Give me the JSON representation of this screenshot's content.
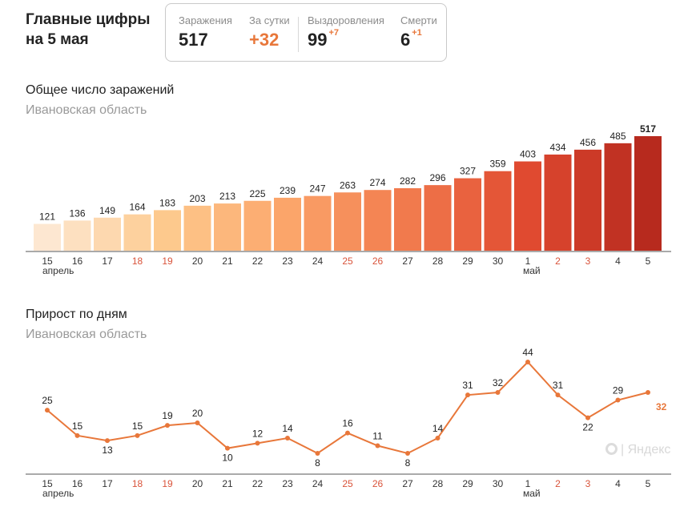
{
  "header": {
    "title": "Главные цифры на 5 мая"
  },
  "stats": [
    {
      "label": "Заражения",
      "value": "517",
      "delta": "",
      "accent": false
    },
    {
      "label": "За сутки",
      "value": "+32",
      "delta": "",
      "accent": true
    },
    {
      "label": "Выздоровления",
      "value": "99",
      "delta": "+7",
      "accent": false
    },
    {
      "label": "Смерти",
      "value": "6",
      "delta": "+1",
      "accent": false
    }
  ],
  "colors": {
    "accent": "#e8773a",
    "weekend": "#d9533a",
    "line": "#e8773a",
    "bar_gradient": [
      "#fde7d1",
      "#fdc98d",
      "#fba56a",
      "#f17a4d",
      "#e04a30",
      "#b72a1e"
    ]
  },
  "watermark": "Яндекс",
  "chart_data": [
    {
      "type": "bar",
      "title": "Общее число заражений",
      "subtitle": "Ивановская область",
      "categories": [
        "15",
        "16",
        "17",
        "18",
        "19",
        "20",
        "21",
        "22",
        "23",
        "24",
        "25",
        "26",
        "27",
        "28",
        "29",
        "30",
        "1",
        "2",
        "3",
        "4",
        "5"
      ],
      "month_labels": [
        {
          "index": 0,
          "text": "апрель"
        },
        {
          "index": 16,
          "text": "май"
        }
      ],
      "weekend_indices": [
        3,
        4,
        10,
        11,
        17,
        18
      ],
      "values": [
        121,
        136,
        149,
        164,
        183,
        203,
        213,
        225,
        239,
        247,
        263,
        274,
        282,
        296,
        327,
        359,
        403,
        434,
        456,
        485,
        517
      ],
      "ylim": [
        0,
        517
      ],
      "grid": false
    },
    {
      "type": "line",
      "title": "Прирост по дням",
      "subtitle": "Ивановская область",
      "categories": [
        "15",
        "16",
        "17",
        "18",
        "19",
        "20",
        "21",
        "22",
        "23",
        "24",
        "25",
        "26",
        "27",
        "28",
        "29",
        "30",
        "1",
        "2",
        "3",
        "4",
        "5"
      ],
      "month_labels": [
        {
          "index": 0,
          "text": "апрель"
        },
        {
          "index": 16,
          "text": "май"
        }
      ],
      "weekend_indices": [
        3,
        4,
        10,
        11,
        17,
        18
      ],
      "values": [
        25,
        15,
        13,
        15,
        19,
        20,
        10,
        12,
        14,
        8,
        16,
        11,
        8,
        14,
        31,
        32,
        44,
        31,
        22,
        29,
        32
      ],
      "ylim": [
        8,
        44
      ],
      "grid": false
    }
  ]
}
